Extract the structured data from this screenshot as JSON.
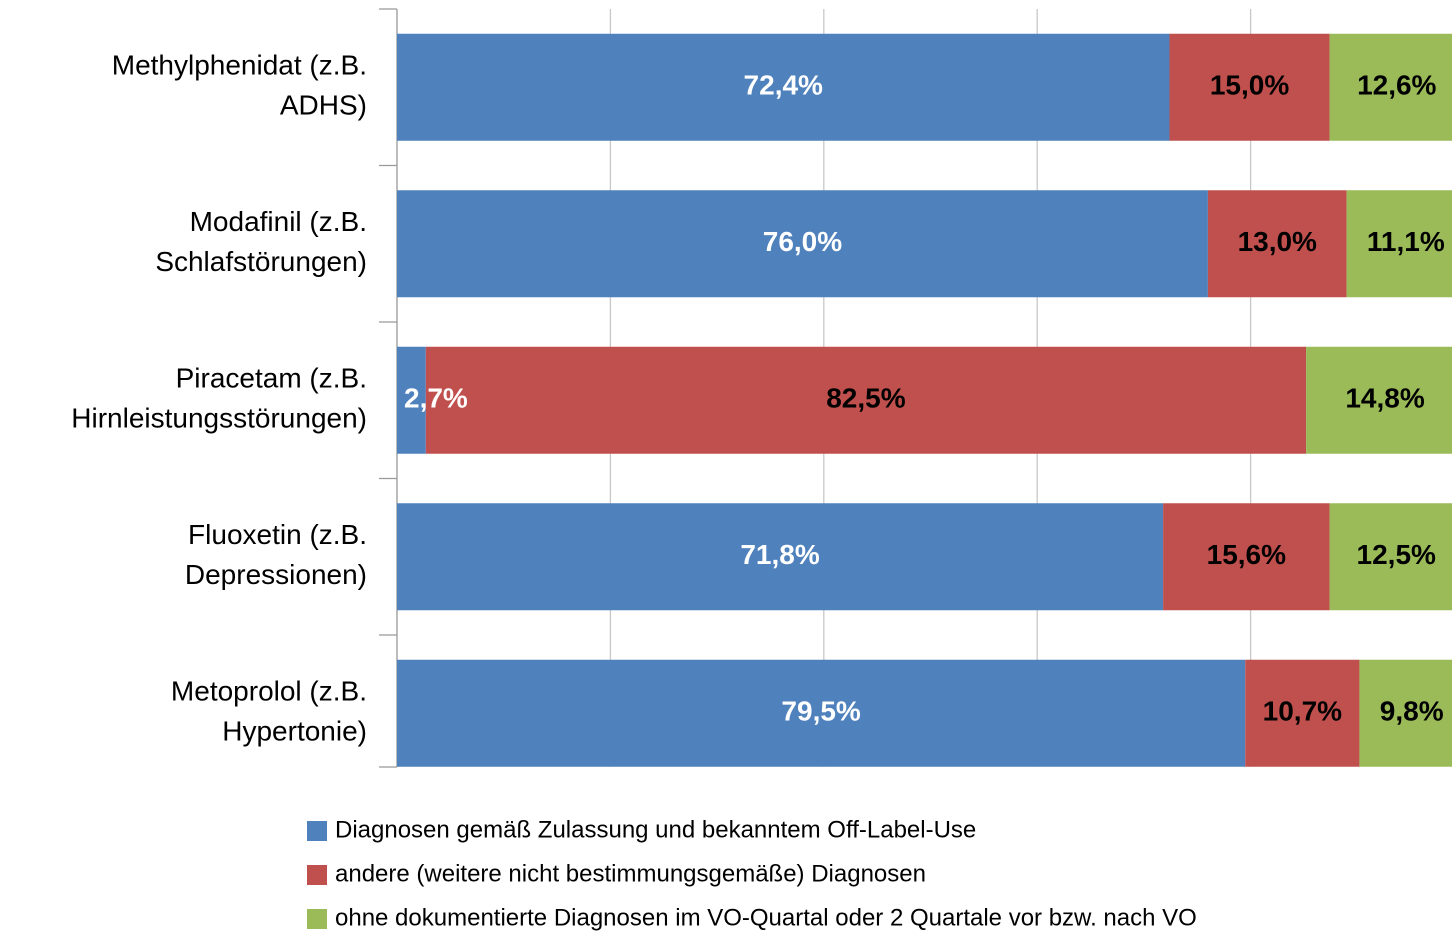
{
  "chart_data": {
    "type": "stacked_barh",
    "categories": [
      "Methylphenidat (z.B.\nADHS)",
      "Modafinil (z.B.\nSchlafstörungen)",
      "Piracetam (z.B.\nHirnleistungsstörungen)",
      "Fluoxetin (z.B.\nDepressionen)",
      "Metoprolol (z.B.\nHypertonie)"
    ],
    "series": [
      {
        "name": "Diagnosen gemäß Zulassung und bekanntem Off-Label-Use",
        "color": "#4f81bd",
        "label_color": "#ffffff",
        "values": [
          72.4,
          76.0,
          2.7,
          71.8,
          79.5
        ],
        "value_labels": [
          "72,4%",
          "76,0%",
          "2,7%",
          "71,8%",
          "79,5%"
        ]
      },
      {
        "name": "andere (weitere nicht bestimmungsgemäße) Diagnosen",
        "color": "#c0504d",
        "label_color": "#000000",
        "values": [
          15.0,
          13.0,
          82.5,
          15.6,
          10.7
        ],
        "value_labels": [
          "15,0%",
          "13,0%",
          "82,5%",
          "15,6%",
          "10,7%"
        ]
      },
      {
        "name": "ohne dokumentierte Diagnosen im VO-Quartal oder 2 Quartale vor bzw. nach VO",
        "color": "#9bbb59",
        "label_color": "#000000",
        "values": [
          12.6,
          11.1,
          14.8,
          12.5,
          9.8
        ],
        "value_labels": [
          "12,6%",
          "11,1%",
          "14,8%",
          "12,5%",
          "9,8%"
        ]
      }
    ],
    "xlim": [
      0,
      100
    ],
    "xticks": [
      0,
      20,
      40,
      60,
      80,
      100
    ],
    "grid": true,
    "legend": "bottom"
  }
}
